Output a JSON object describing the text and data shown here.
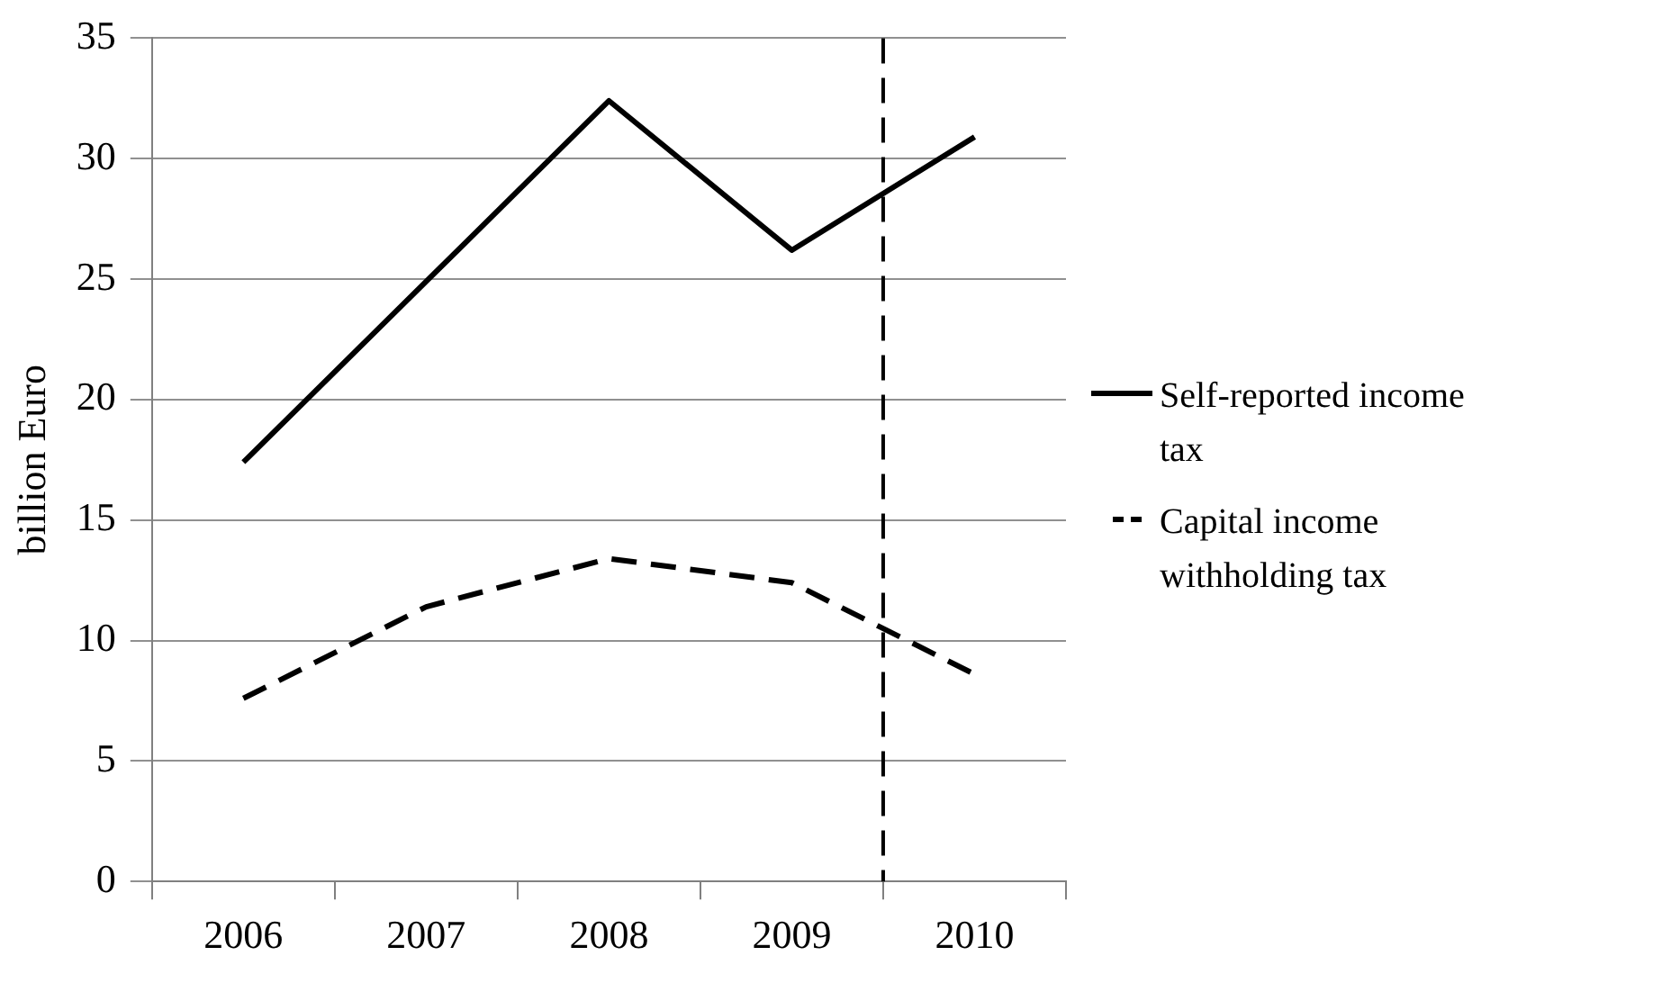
{
  "chart_data": {
    "type": "line",
    "ylabel": "billion Euro",
    "x": [
      2006,
      2007,
      2008,
      2009,
      2010
    ],
    "series": [
      {
        "name": "Self-reported income tax",
        "color": "#000000",
        "line_style": "solid",
        "values": [
          17.4,
          24.9,
          32.4,
          26.2,
          30.9
        ]
      },
      {
        "name": "Capital income withholding tax",
        "color": "#000000",
        "line_style": "dashed",
        "values": [
          7.6,
          11.4,
          13.4,
          12.4,
          8.6
        ]
      }
    ],
    "xlim": [
      2005.5,
      2010.5
    ],
    "xticks": [
      {
        "value": 2005.5,
        "label": null
      },
      2006,
      {
        "value": 2006.5,
        "label": null
      },
      2007,
      {
        "value": 2007.5,
        "label": null
      },
      2008,
      {
        "value": 2008.5,
        "label": null
      },
      2009,
      {
        "value": 2009.5,
        "label": null
      },
      2010,
      {
        "value": 2010.5,
        "label": null
      }
    ],
    "ylim": [
      0,
      35
    ],
    "yticks": [
      0,
      5,
      10,
      15,
      20,
      25,
      30,
      35
    ],
    "ref_lines": [
      {
        "axis": "x",
        "value": 2009.5,
        "label": null,
        "color": "#000000",
        "line_style": "dashed"
      }
    ],
    "grid": "y",
    "legend": "right",
    "marker": "none"
  }
}
